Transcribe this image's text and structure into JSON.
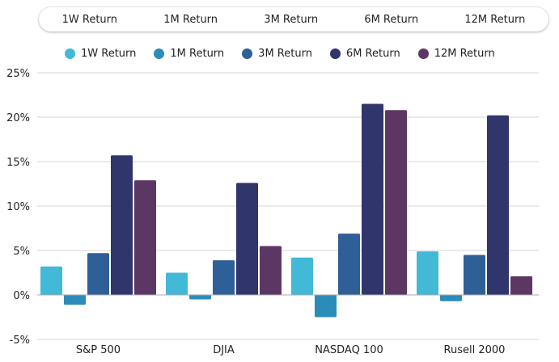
{
  "tabs": [
    {
      "label": "1W Return"
    },
    {
      "label": "1M Return"
    },
    {
      "label": "3M Return"
    },
    {
      "label": "6M Return"
    },
    {
      "label": "12M Return"
    }
  ],
  "chart_data": {
    "type": "bar",
    "title": "",
    "xlabel": "",
    "ylabel": "",
    "categories": [
      "S&P 500",
      "DJIA",
      "NASDAQ 100",
      "Rusell 2000"
    ],
    "series": [
      {
        "name": "1W Return",
        "color": "#42b9d6",
        "values": [
          3.2,
          2.5,
          4.2,
          4.9
        ]
      },
      {
        "name": "1M Return",
        "color": "#2b8bb9",
        "values": [
          -1.1,
          -0.5,
          -2.5,
          -0.7
        ]
      },
      {
        "name": "3M Return",
        "color": "#2e5f97",
        "values": [
          4.7,
          3.9,
          6.9,
          4.5
        ]
      },
      {
        "name": "6M Return",
        "color": "#30356c",
        "values": [
          15.7,
          12.6,
          21.5,
          20.2
        ]
      },
      {
        "name": "12M Return",
        "color": "#5d3763",
        "values": [
          12.9,
          5.5,
          20.8,
          2.1
        ]
      }
    ],
    "ylim": [
      -5,
      25
    ],
    "yticks": [
      25,
      20,
      15,
      10,
      5,
      0,
      -5
    ],
    "ytick_labels": [
      "25%",
      "20%",
      "15%",
      "10%",
      "5%",
      "0%",
      "-5%"
    ],
    "grid": true,
    "legend_position": "top"
  }
}
